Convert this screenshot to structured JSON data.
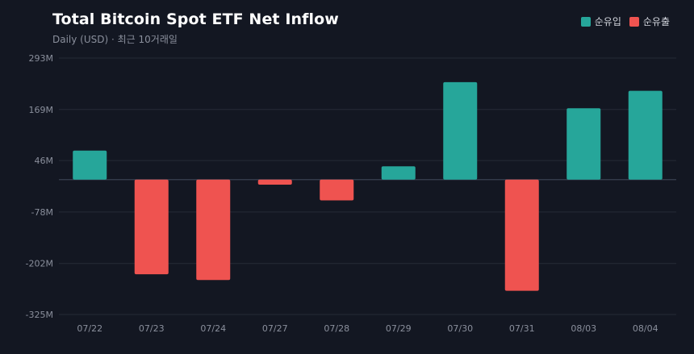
{
  "header": {
    "title": "Total Bitcoin Spot ETF Net Inflow",
    "subtitle": "Daily (USD) · 최근 10거래일"
  },
  "legend": [
    {
      "label": "순유입",
      "color": "#26a69a"
    },
    {
      "label": "순유출",
      "color": "#ef5350"
    }
  ],
  "colors": {
    "positive": "#26a69a",
    "negative": "#ef5350",
    "background": "#131722",
    "grid": "#262b37",
    "zero_line": "#3a4150"
  },
  "chart_data": {
    "type": "bar",
    "title": "Total Bitcoin Spot ETF Net Inflow",
    "subtitle": "Daily (USD) · 최근 10거래일",
    "categories": [
      "07/22",
      "07/23",
      "07/24",
      "07/27",
      "07/28",
      "07/29",
      "07/30",
      "07/31",
      "08/03",
      "08/04"
    ],
    "values": [
      70,
      -228,
      -242,
      -12,
      -50,
      32,
      235,
      -268,
      172,
      214
    ],
    "unit": "M",
    "y_ticks": [
      293,
      169,
      46,
      -78,
      -202,
      -325
    ],
    "y_tick_labels": [
      "293M",
      "169M",
      "46M",
      "-78M",
      "-202M",
      "-325M"
    ],
    "ylim": [
      -325,
      293
    ],
    "grid": true,
    "legend_position": "top-right"
  }
}
